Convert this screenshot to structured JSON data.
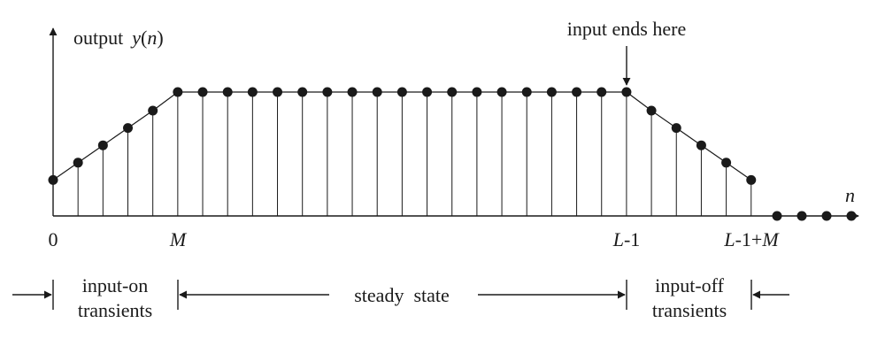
{
  "labels": {
    "y_axis_prefix": "output",
    "y_axis_fn": "y",
    "y_axis_arg_open": "(",
    "y_axis_arg": "n",
    "y_axis_arg_close": ")",
    "x_axis": "n",
    "input_ends": "input ends here",
    "tick_zero": "0",
    "tick_M": "M",
    "tick_L_letter": "L",
    "tick_L_rest": "-1",
    "tick_LM_letter1": "L",
    "tick_LM_mid": "-1+",
    "tick_LM_letter2": "M",
    "region_on_line1": "input-on",
    "region_on_line2": "transients",
    "region_steady": "steady  state",
    "region_off_line1": "input-off",
    "region_off_line2": "transients"
  },
  "diagram": {
    "M": 5,
    "L_minus_1": 23,
    "on_transient_values": [
      0.29,
      0.43,
      0.57,
      0.71,
      0.85
    ],
    "steady_value": 1.0,
    "off_transient_values": [
      0.85,
      0.71,
      0.57,
      0.43,
      0.29
    ],
    "trailing_zero_dots": 4,
    "colors": {
      "ink": "#1a1a1a",
      "background": "#ffffff"
    }
  }
}
